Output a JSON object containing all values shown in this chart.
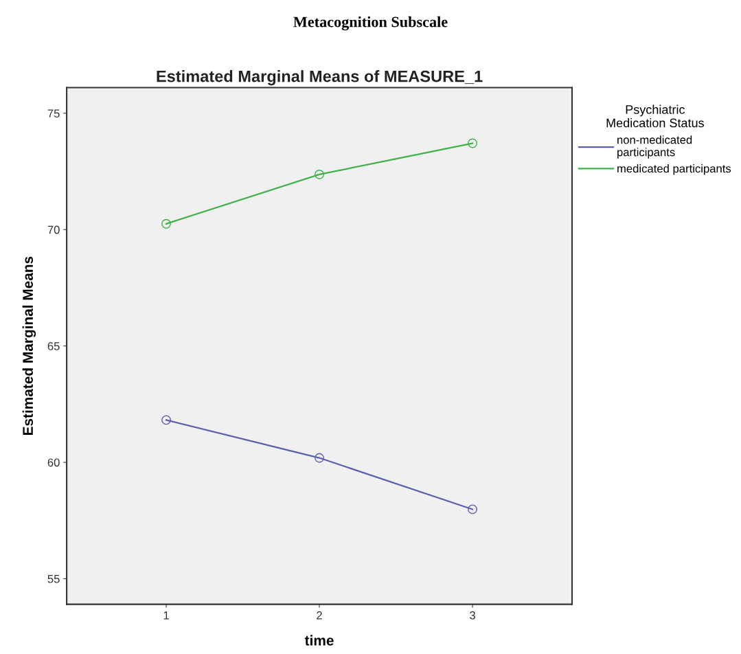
{
  "chart_data": {
    "type": "line",
    "title": "Estimated Marginal Means of MEASURE_1",
    "subtitle": "Metacognition Subscale",
    "xlabel": "time",
    "ylabel": "Estimated Marginal Means",
    "legend_title": "Psychiatric\nMedication Status",
    "x": [
      1,
      2,
      3
    ],
    "xlim": [
      0.35,
      3.65
    ],
    "xticks": [
      1,
      2,
      3
    ],
    "ylim": [
      53.9,
      76.1
    ],
    "yticks": [
      55,
      60,
      65,
      70,
      75
    ],
    "series": [
      {
        "name": "non-medicated\nparticipants",
        "color": "#5b5fb0",
        "values": [
          61.82,
          60.19,
          57.98
        ]
      },
      {
        "name": "medicated participants",
        "color": "#3fb04a",
        "values": [
          70.25,
          72.37,
          73.71
        ]
      }
    ],
    "marker": "circle",
    "line_style": "solid",
    "grid": false,
    "legend": "right"
  }
}
